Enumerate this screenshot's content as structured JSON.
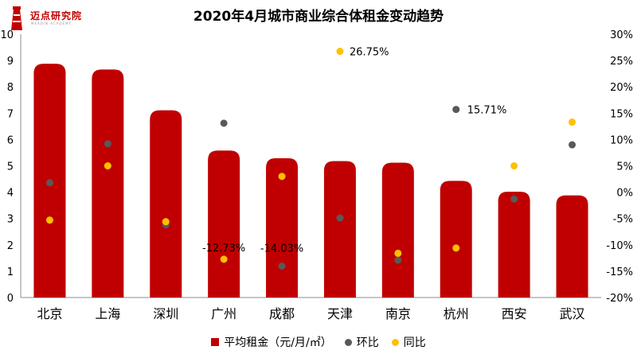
{
  "brand": {
    "name": "迈点研究院",
    "tagline": "MEADIN ACADEMY",
    "logo_color": "#c00000"
  },
  "chart_data": {
    "type": "bar",
    "title": "2020年4月城市商业综合体租金变动趋势",
    "categories": [
      "北京",
      "上海",
      "深圳",
      "广州",
      "成都",
      "天津",
      "南京",
      "杭州",
      "西安",
      "武汉"
    ],
    "series": [
      {
        "name": "平均租金（元/月/㎡）",
        "type": "bar",
        "axis": "left",
        "color": "#c00000",
        "values": [
          8.88,
          8.66,
          7.11,
          5.58,
          5.29,
          5.18,
          5.12,
          4.43,
          4.02,
          3.88
        ]
      },
      {
        "name": "环比",
        "type": "scatter",
        "axis": "right",
        "unit": "%",
        "color": "#595959",
        "values": [
          1.8,
          9.2,
          -6.2,
          13.1,
          -14.03,
          -4.9,
          -12.9,
          15.71,
          -1.3,
          9.0
        ]
      },
      {
        "name": "同比",
        "type": "scatter",
        "axis": "right",
        "unit": "%",
        "color": "#ffc000",
        "values": [
          -5.3,
          5.0,
          -5.6,
          -12.73,
          3.0,
          26.75,
          -11.6,
          -10.6,
          5.0,
          13.3
        ]
      }
    ],
    "data_labels": [
      "26.75%",
      "15.71%",
      "-12.73%",
      "-14.03%"
    ],
    "ylim": [
      0,
      10
    ],
    "y_ticks": [
      "0",
      "1",
      "2",
      "3",
      "4",
      "5",
      "6",
      "7",
      "8",
      "9",
      "10"
    ],
    "y2lim": [
      -20,
      30
    ],
    "y2_ticks": [
      "-20%",
      "-15%",
      "-10%",
      "-5%",
      "0%",
      "5%",
      "10%",
      "15%",
      "20%",
      "25%",
      "30%"
    ],
    "grid": false,
    "legend_position": "bottom"
  }
}
